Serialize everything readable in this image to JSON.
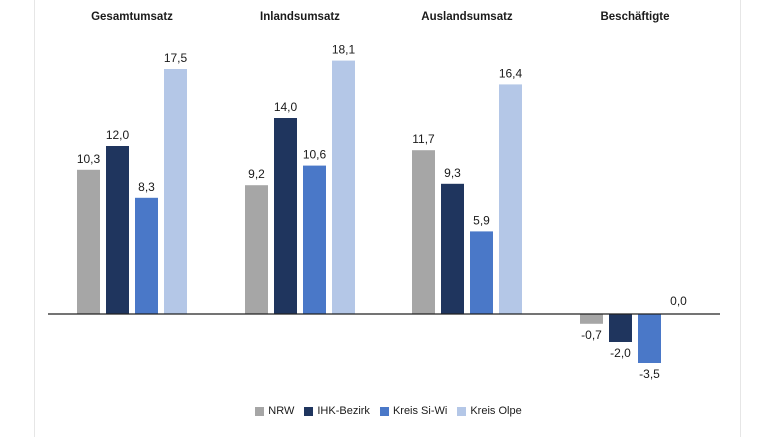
{
  "chart_data": {
    "type": "bar",
    "categories": [
      "Gesamtumsatz",
      "Inlandsumsatz",
      "Auslandsumsatz",
      "Beschäftigte"
    ],
    "series": [
      {
        "name": "NRW",
        "values": [
          10.3,
          9.2,
          11.7,
          -0.7
        ]
      },
      {
        "name": "IHK-Bezirk",
        "values": [
          12.0,
          14.0,
          9.3,
          -2.0
        ]
      },
      {
        "name": "Kreis Si-Wi",
        "values": [
          8.3,
          10.6,
          5.9,
          -3.5
        ]
      },
      {
        "name": "Kreis Olpe",
        "values": [
          17.5,
          18.1,
          16.4,
          0.0
        ]
      }
    ],
    "value_labels": [
      [
        "10,3",
        "9,2",
        "11,7",
        "-0,7"
      ],
      [
        "12,0",
        "14,0",
        "9,3",
        "-2,0"
      ],
      [
        "8,3",
        "10,6",
        "5,9",
        "-3,5"
      ],
      [
        "17,5",
        "18,1",
        "16,4",
        "0,0"
      ]
    ],
    "title": "",
    "xlabel": "",
    "ylabel": "",
    "ylim": [
      -4,
      20
    ],
    "grid": false,
    "legend_position": "bottom-center"
  },
  "colors": {
    "NRW": "#a6a6a6",
    "IHK-Bezirk": "#1f355e",
    "Kreis Si-Wi": "#4a78c8",
    "Kreis Olpe": "#b4c7e7",
    "axis": "#222222",
    "text": "#1a1a1a"
  }
}
